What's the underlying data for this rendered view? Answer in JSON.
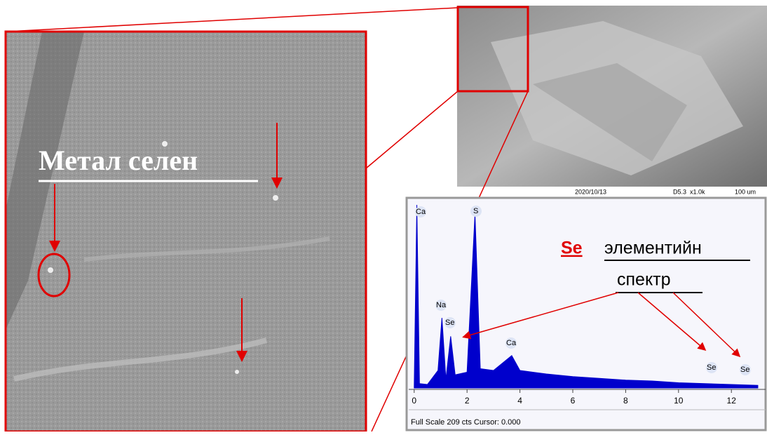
{
  "zoom_label": "Метал селен",
  "sem_caption": {
    "date": "2020/10/13",
    "settings": "D5.3  x1.0k",
    "scale": "100 um"
  },
  "annotation": {
    "element": "Se",
    "word1": "элементийн",
    "word2": "спектр"
  },
  "spectrum": {
    "type": "area",
    "x": [
      0,
      0.1,
      0.2,
      0.5,
      0.9,
      1.05,
      1.2,
      1.38,
      1.55,
      2.0,
      2.3,
      2.5,
      3.0,
      3.69,
      4.0,
      5,
      6,
      7,
      8,
      9,
      10,
      11,
      12,
      13
    ],
    "values": [
      0,
      209,
      5,
      4,
      20,
      80,
      10,
      59,
      15,
      18,
      199,
      22,
      20,
      37,
      20,
      16,
      13,
      11,
      9,
      8,
      6,
      5,
      4,
      3
    ],
    "color": "#0000cc",
    "xlim": [
      -0.1,
      13.4
    ],
    "ylim": [
      0,
      209
    ],
    "xticks": [
      0,
      2,
      4,
      6,
      8,
      10,
      12
    ],
    "peak_labels": [
      "Ca",
      "S",
      "Na",
      "Se",
      "Ca",
      "Se",
      "Se"
    ],
    "footer": "Full Scale 209 cts Cursor: 0.000"
  }
}
